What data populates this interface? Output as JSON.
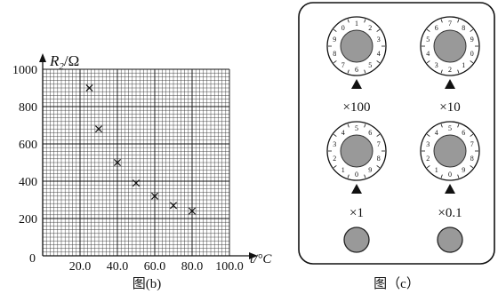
{
  "chart_data": {
    "type": "scatter",
    "marker": "x",
    "ylabel": "R",
    "ylabel_sub": "2",
    "ylabel_unit": "/Ω",
    "xlabel": "t/°C",
    "origin_label": "0",
    "x_ticks": [
      "20.0",
      "40.0",
      "60.0",
      "80.0",
      "100.0"
    ],
    "y_ticks": [
      "200",
      "400",
      "600",
      "800",
      "1000"
    ],
    "xlim": [
      0,
      100
    ],
    "ylim": [
      0,
      1000
    ],
    "grid": true,
    "points": [
      {
        "x": 25,
        "y": 900
      },
      {
        "x": 30,
        "y": 680
      },
      {
        "x": 40,
        "y": 500
      },
      {
        "x": 50,
        "y": 390
      },
      {
        "x": 60,
        "y": 320
      },
      {
        "x": 70,
        "y": 270
      },
      {
        "x": 80,
        "y": 240
      }
    ]
  },
  "figure_b_caption": "图(b)",
  "resistance_box": {
    "caption": "图（c）",
    "dial_digits": [
      "0",
      "1",
      "2",
      "3",
      "4",
      "5",
      "6",
      "7",
      "8",
      "9"
    ],
    "dials": [
      {
        "label": "×100",
        "value": 6
      },
      {
        "label": "×10",
        "value": 2
      },
      {
        "label": "×1",
        "value": 0
      },
      {
        "label": "×0.1",
        "value": 0
      }
    ],
    "terminals": [
      "terminal-left",
      "terminal-right"
    ]
  }
}
